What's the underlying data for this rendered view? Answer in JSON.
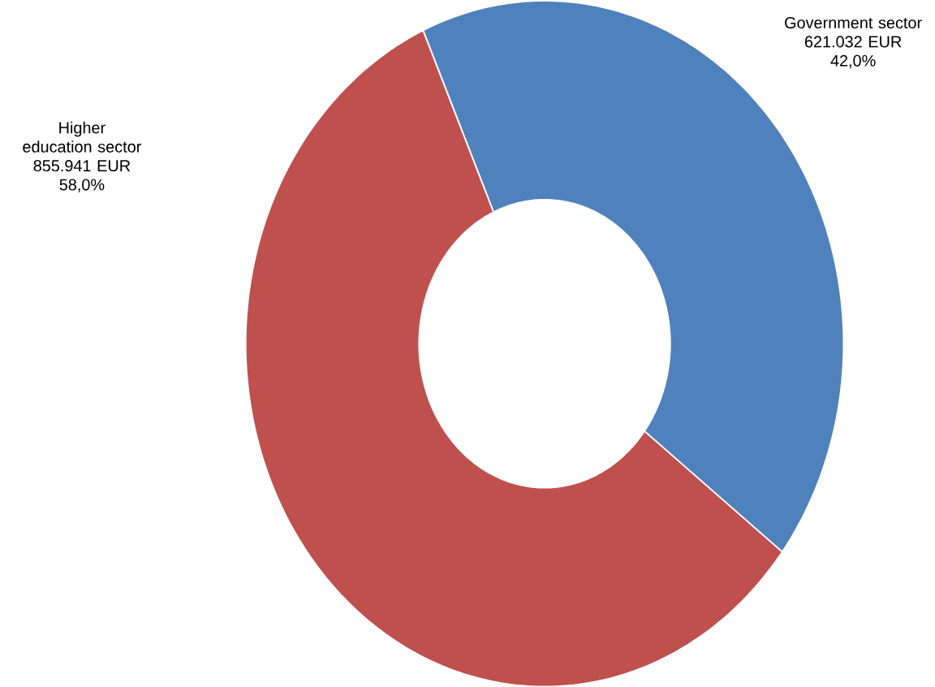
{
  "chart_data": {
    "type": "donut",
    "categories": [
      "Government sector",
      "Higher education sector"
    ],
    "values": [
      621032,
      855941
    ],
    "value_labels": [
      "621.032 EUR",
      "855.941 EUR"
    ],
    "annotations": [
      "42,0%",
      "58,0%"
    ],
    "colors": [
      "#4f81bd",
      "#c0504d"
    ]
  }
}
